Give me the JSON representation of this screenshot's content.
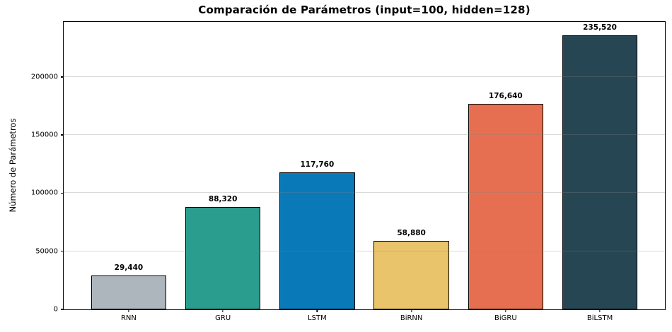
{
  "chart_data": {
    "type": "bar",
    "title": "Comparación de Parámetros (input=100, hidden=128)",
    "xlabel": "",
    "ylabel": "Número de Parámetros",
    "categories": [
      "RNN",
      "GRU",
      "LSTM",
      "BiRNN",
      "BiGRU",
      "BiLSTM"
    ],
    "values": [
      29440,
      88320,
      117760,
      58880,
      176640,
      235520
    ],
    "value_labels": [
      "29,440",
      "88,320",
      "117,760",
      "58,880",
      "176,640",
      "235,520"
    ],
    "bar_colors": [
      "#adb5bd",
      "#2a9d8f",
      "#0a79b8",
      "#e9c46a",
      "#e76f51",
      "#264653"
    ],
    "bar_edge_color": "#000000",
    "ylim": [
      0,
      247296
    ],
    "yticks": [
      0,
      50000,
      100000,
      150000,
      200000
    ],
    "ytick_labels": [
      "0",
      "50000",
      "100000",
      "150000",
      "200000"
    ],
    "grid": "y",
    "grid_alpha": 0.3,
    "legend": "none",
    "background_color": "#ffffff"
  }
}
